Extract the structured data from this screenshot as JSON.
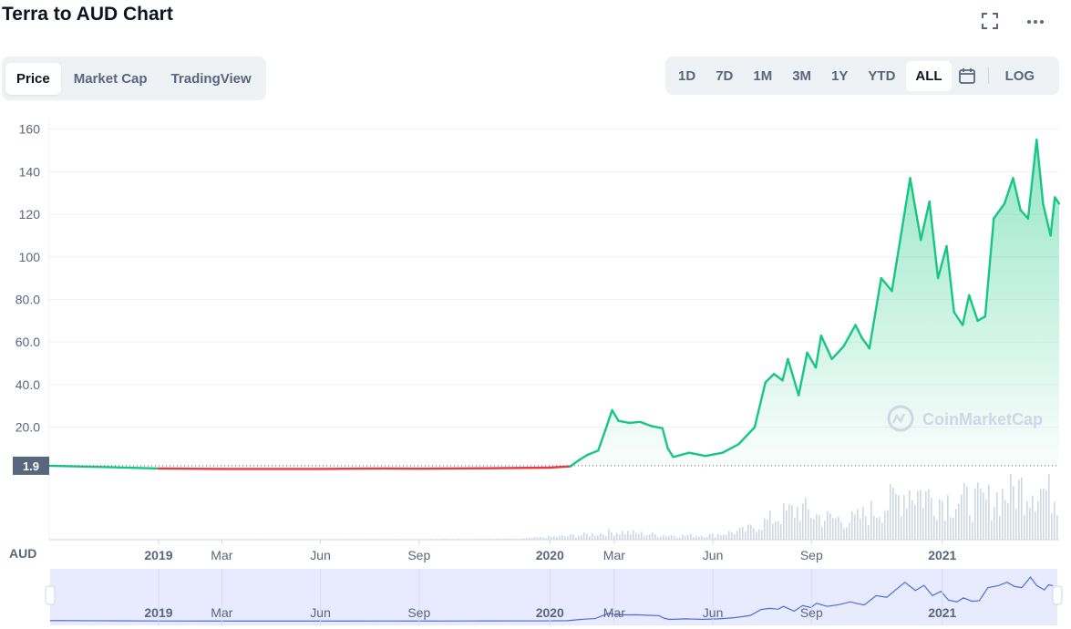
{
  "header": {
    "title": "Terra to AUD Chart"
  },
  "tabs": [
    "Price",
    "Market Cap",
    "TradingView"
  ],
  "active_tab": "Price",
  "ranges": [
    "1D",
    "7D",
    "1M",
    "3M",
    "1Y",
    "YTD",
    "ALL"
  ],
  "active_range": "ALL",
  "log_label": "LOG",
  "icons": {
    "fullscreen": "fullscreen-icon",
    "more": "more-icon",
    "calendar": "calendar-icon"
  },
  "colors": {
    "up": "#16c784",
    "down": "#ea3943",
    "volume": "#cfd6e4",
    "navigator": "#e8ebfd"
  },
  "chart_data": {
    "type": "line",
    "currency_label": "AUD",
    "watermark": "CoinMarketCap",
    "current_price_label": "1.9",
    "baseline_value": 1.9,
    "y_ticks": [
      "160",
      "140",
      "120",
      "100",
      "80.0",
      "60.0",
      "40.0",
      "20.0"
    ],
    "y_tick_values": [
      160,
      140,
      120,
      100,
      80,
      60,
      40,
      20
    ],
    "ylim": [
      -2,
      165
    ],
    "x_axis_type": "date",
    "xlim": [
      "2018-09-21",
      "2021-04-20"
    ],
    "x_ticks": [
      {
        "label": "2019",
        "date": "2019-01-01",
        "bold": true
      },
      {
        "label": "Mar",
        "date": "2019-03-01",
        "bold": false
      },
      {
        "label": "Jun",
        "date": "2019-06-01",
        "bold": false
      },
      {
        "label": "Sep",
        "date": "2019-09-01",
        "bold": false
      },
      {
        "label": "2020",
        "date": "2020-01-01",
        "bold": true
      },
      {
        "label": "Mar",
        "date": "2020-03-01",
        "bold": false
      },
      {
        "label": "Jun",
        "date": "2020-06-01",
        "bold": false
      },
      {
        "label": "Sep",
        "date": "2020-09-01",
        "bold": false
      },
      {
        "label": "2021",
        "date": "2021-01-01",
        "bold": true
      }
    ],
    "series": [
      {
        "points": [
          [
            "2018-09-21",
            1.9
          ],
          [
            "2018-11-01",
            1.4
          ],
          [
            "2019-01-01",
            0.6
          ],
          [
            "2019-03-01",
            0.4
          ],
          [
            "2019-06-01",
            0.4
          ],
          [
            "2019-08-01",
            0.6
          ],
          [
            "2019-09-01",
            0.5
          ],
          [
            "2019-11-01",
            0.7
          ],
          [
            "2020-01-01",
            1.0
          ],
          [
            "2020-01-20",
            1.6
          ],
          [
            "2020-01-28",
            4.5
          ],
          [
            "2020-02-05",
            7.0
          ],
          [
            "2020-02-15",
            9.0
          ],
          [
            "2020-02-22",
            19.0
          ],
          [
            "2020-02-28",
            28.0
          ],
          [
            "2020-03-05",
            23.0
          ],
          [
            "2020-03-15",
            22.0
          ],
          [
            "2020-03-25",
            22.5
          ],
          [
            "2020-04-05",
            20.5
          ],
          [
            "2020-04-15",
            19.5
          ],
          [
            "2020-04-20",
            10.0
          ],
          [
            "2020-04-25",
            6.0
          ],
          [
            "2020-05-10",
            8.0
          ],
          [
            "2020-05-25",
            6.5
          ],
          [
            "2020-06-10",
            8.0
          ],
          [
            "2020-06-25",
            12.0
          ],
          [
            "2020-07-10",
            20.0
          ],
          [
            "2020-07-20",
            41.0
          ],
          [
            "2020-07-28",
            45.0
          ],
          [
            "2020-08-05",
            42.0
          ],
          [
            "2020-08-10",
            52.0
          ],
          [
            "2020-08-20",
            35.0
          ],
          [
            "2020-08-28",
            55.0
          ],
          [
            "2020-09-05",
            48.0
          ],
          [
            "2020-09-10",
            63.0
          ],
          [
            "2020-09-20",
            52.0
          ],
          [
            "2020-10-01",
            58.0
          ],
          [
            "2020-10-12",
            68.0
          ],
          [
            "2020-10-18",
            62.0
          ],
          [
            "2020-10-25",
            57.0
          ],
          [
            "2020-11-05",
            90.0
          ],
          [
            "2020-11-15",
            84.0
          ],
          [
            "2020-11-25",
            115.0
          ],
          [
            "2020-12-02",
            137.0
          ],
          [
            "2020-12-12",
            108.0
          ],
          [
            "2020-12-20",
            126.0
          ],
          [
            "2020-12-28",
            90.0
          ],
          [
            "2021-01-05",
            105.0
          ],
          [
            "2021-01-12",
            74.0
          ],
          [
            "2021-01-20",
            68.0
          ],
          [
            "2021-01-26",
            82.0
          ],
          [
            "2021-02-03",
            70.0
          ],
          [
            "2021-02-10",
            72.0
          ],
          [
            "2021-02-18",
            118.0
          ],
          [
            "2021-02-28",
            125.0
          ],
          [
            "2021-03-08",
            137.0
          ],
          [
            "2021-03-15",
            122.0
          ],
          [
            "2021-03-22",
            118.0
          ],
          [
            "2021-03-30",
            155.0
          ],
          [
            "2021-04-05",
            125.0
          ],
          [
            "2021-04-12",
            110.0
          ],
          [
            "2021-04-16",
            128.0
          ],
          [
            "2021-04-20",
            125.0
          ]
        ]
      }
    ],
    "volume": [
      [
        "2019-01-01",
        0.5
      ],
      [
        "2019-06-01",
        0.5
      ],
      [
        "2019-12-01",
        1
      ],
      [
        "2020-02-01",
        6
      ],
      [
        "2020-03-01",
        10
      ],
      [
        "2020-04-01",
        7
      ],
      [
        "2020-05-01",
        5
      ],
      [
        "2020-06-01",
        6
      ],
      [
        "2020-07-01",
        12
      ],
      [
        "2020-08-01",
        30
      ],
      [
        "2020-08-20",
        40
      ],
      [
        "2020-09-10",
        28
      ],
      [
        "2020-10-10",
        25
      ],
      [
        "2020-11-10",
        45
      ],
      [
        "2020-12-01",
        65
      ],
      [
        "2020-12-20",
        55
      ],
      [
        "2021-01-10",
        50
      ],
      [
        "2021-02-10",
        48
      ],
      [
        "2021-03-01",
        60
      ],
      [
        "2021-03-25",
        70
      ],
      [
        "2021-04-20",
        55
      ]
    ],
    "grid": true,
    "legend": "none"
  }
}
